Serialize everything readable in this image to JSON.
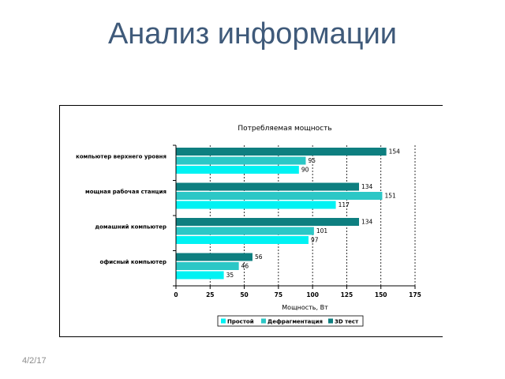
{
  "slide": {
    "title": "Анализ информации",
    "footer_date": "4/2/17"
  },
  "chart_data": {
    "type": "bar",
    "orientation": "horizontal",
    "title": "Потребляемая мощность",
    "xlabel": "Мощность, Вт",
    "ylabel": "",
    "xlim": [
      0,
      175
    ],
    "x_ticks": [
      0,
      25,
      50,
      75,
      100,
      125,
      150,
      175
    ],
    "grid": "vertical-dashed",
    "legend_position": "bottom",
    "categories": [
      "компьютер верхнего уровня",
      "мощная рабочая станция",
      "домашний компьютер",
      "офисный компьютер"
    ],
    "series": [
      {
        "name": "3D тест",
        "color": "#0e7f80",
        "values": [
          154,
          134,
          134,
          56
        ]
      },
      {
        "name": "Дефрагментация",
        "color": "#2cc7c6",
        "values": [
          95,
          151,
          101,
          46
        ]
      },
      {
        "name": "Простой",
        "color": "#00f2f3",
        "values": [
          90,
          117,
          97,
          35
        ]
      }
    ],
    "legend_order": [
      "Простой",
      "Дефрагментация",
      "3D тест"
    ]
  }
}
